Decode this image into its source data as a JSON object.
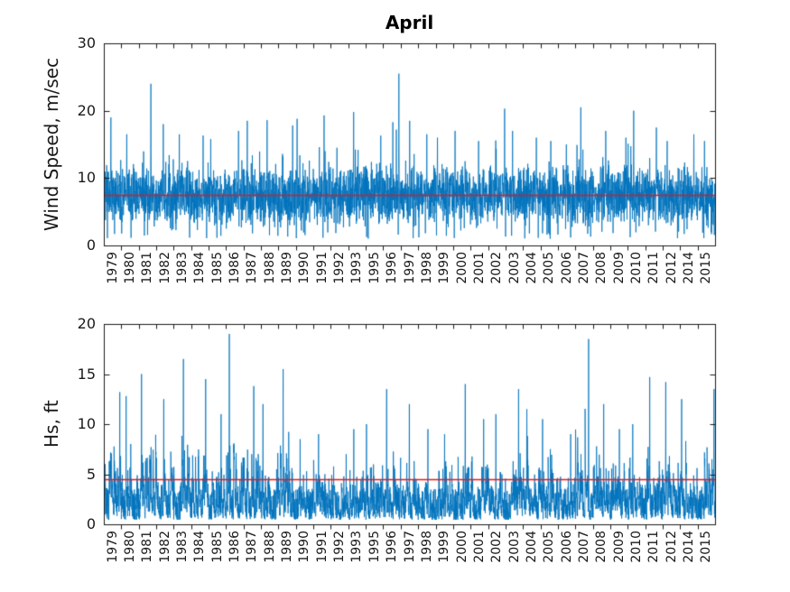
{
  "title": "April",
  "years": [
    "1979",
    "1980",
    "1981",
    "1982",
    "1983",
    "1984",
    "1985",
    "1986",
    "1987",
    "1988",
    "1989",
    "1990",
    "1991",
    "1992",
    "1993",
    "1995",
    "1996",
    "1997",
    "1998",
    "1999",
    "2000",
    "2001",
    "2002",
    "2003",
    "2004",
    "2005",
    "2006",
    "2007",
    "2008",
    "2009",
    "2010",
    "2011",
    "2012",
    "2014",
    "2015"
  ],
  "chart_data": [
    {
      "type": "line",
      "subplot": "top",
      "title": "April",
      "ylabel": "Wind Speed, m/sec",
      "xlabel": "",
      "ylim": [
        0,
        30
      ],
      "yticks": [
        0,
        10,
        20,
        30
      ],
      "grid": "off",
      "legend": "none",
      "mean_value": 7.5,
      "yearly_max": [
        19,
        16.5,
        24,
        18,
        16.5,
        16.3,
        15.8,
        17,
        18.5,
        18.6,
        17.8,
        18.8,
        19.3,
        14.5,
        19.8,
        16.3,
        25.5,
        18.5,
        16.5,
        16,
        17,
        15.5,
        20.3,
        17,
        16,
        15.5,
        15,
        20.5,
        17,
        16,
        20,
        17.5,
        15.5,
        16.5,
        15.5
      ],
      "series_color": "#0072BD",
      "mean_line_color": "#e81717"
    },
    {
      "type": "line",
      "subplot": "bottom",
      "title": "",
      "ylabel": "Hs, ft",
      "xlabel": "",
      "ylim": [
        0,
        20
      ],
      "yticks": [
        0,
        5,
        10,
        15,
        20
      ],
      "grid": "off",
      "legend": "none",
      "mean_value": 4.5,
      "yearly_max": [
        13.2,
        12.8,
        15,
        12.5,
        16.5,
        14.5,
        11,
        19,
        13.8,
        12,
        15.5,
        8.5,
        9,
        7,
        9.5,
        10,
        13.5,
        12,
        9.5,
        9,
        14,
        10.5,
        11,
        13.5,
        11.5,
        10.5,
        9,
        18.5,
        12,
        9.5,
        10,
        14.7,
        14.2,
        12.5,
        13.5
      ],
      "series_color": "#0072BD",
      "mean_line_color": "#e81717"
    }
  ],
  "colors": {
    "background": "#ffffff",
    "axis": "#1a1a1a",
    "text": "#1a1a1a",
    "series_blue": "#0072BD",
    "mean_red": "#e81717"
  },
  "render": {
    "seed": 7,
    "points_per_year": 110
  }
}
